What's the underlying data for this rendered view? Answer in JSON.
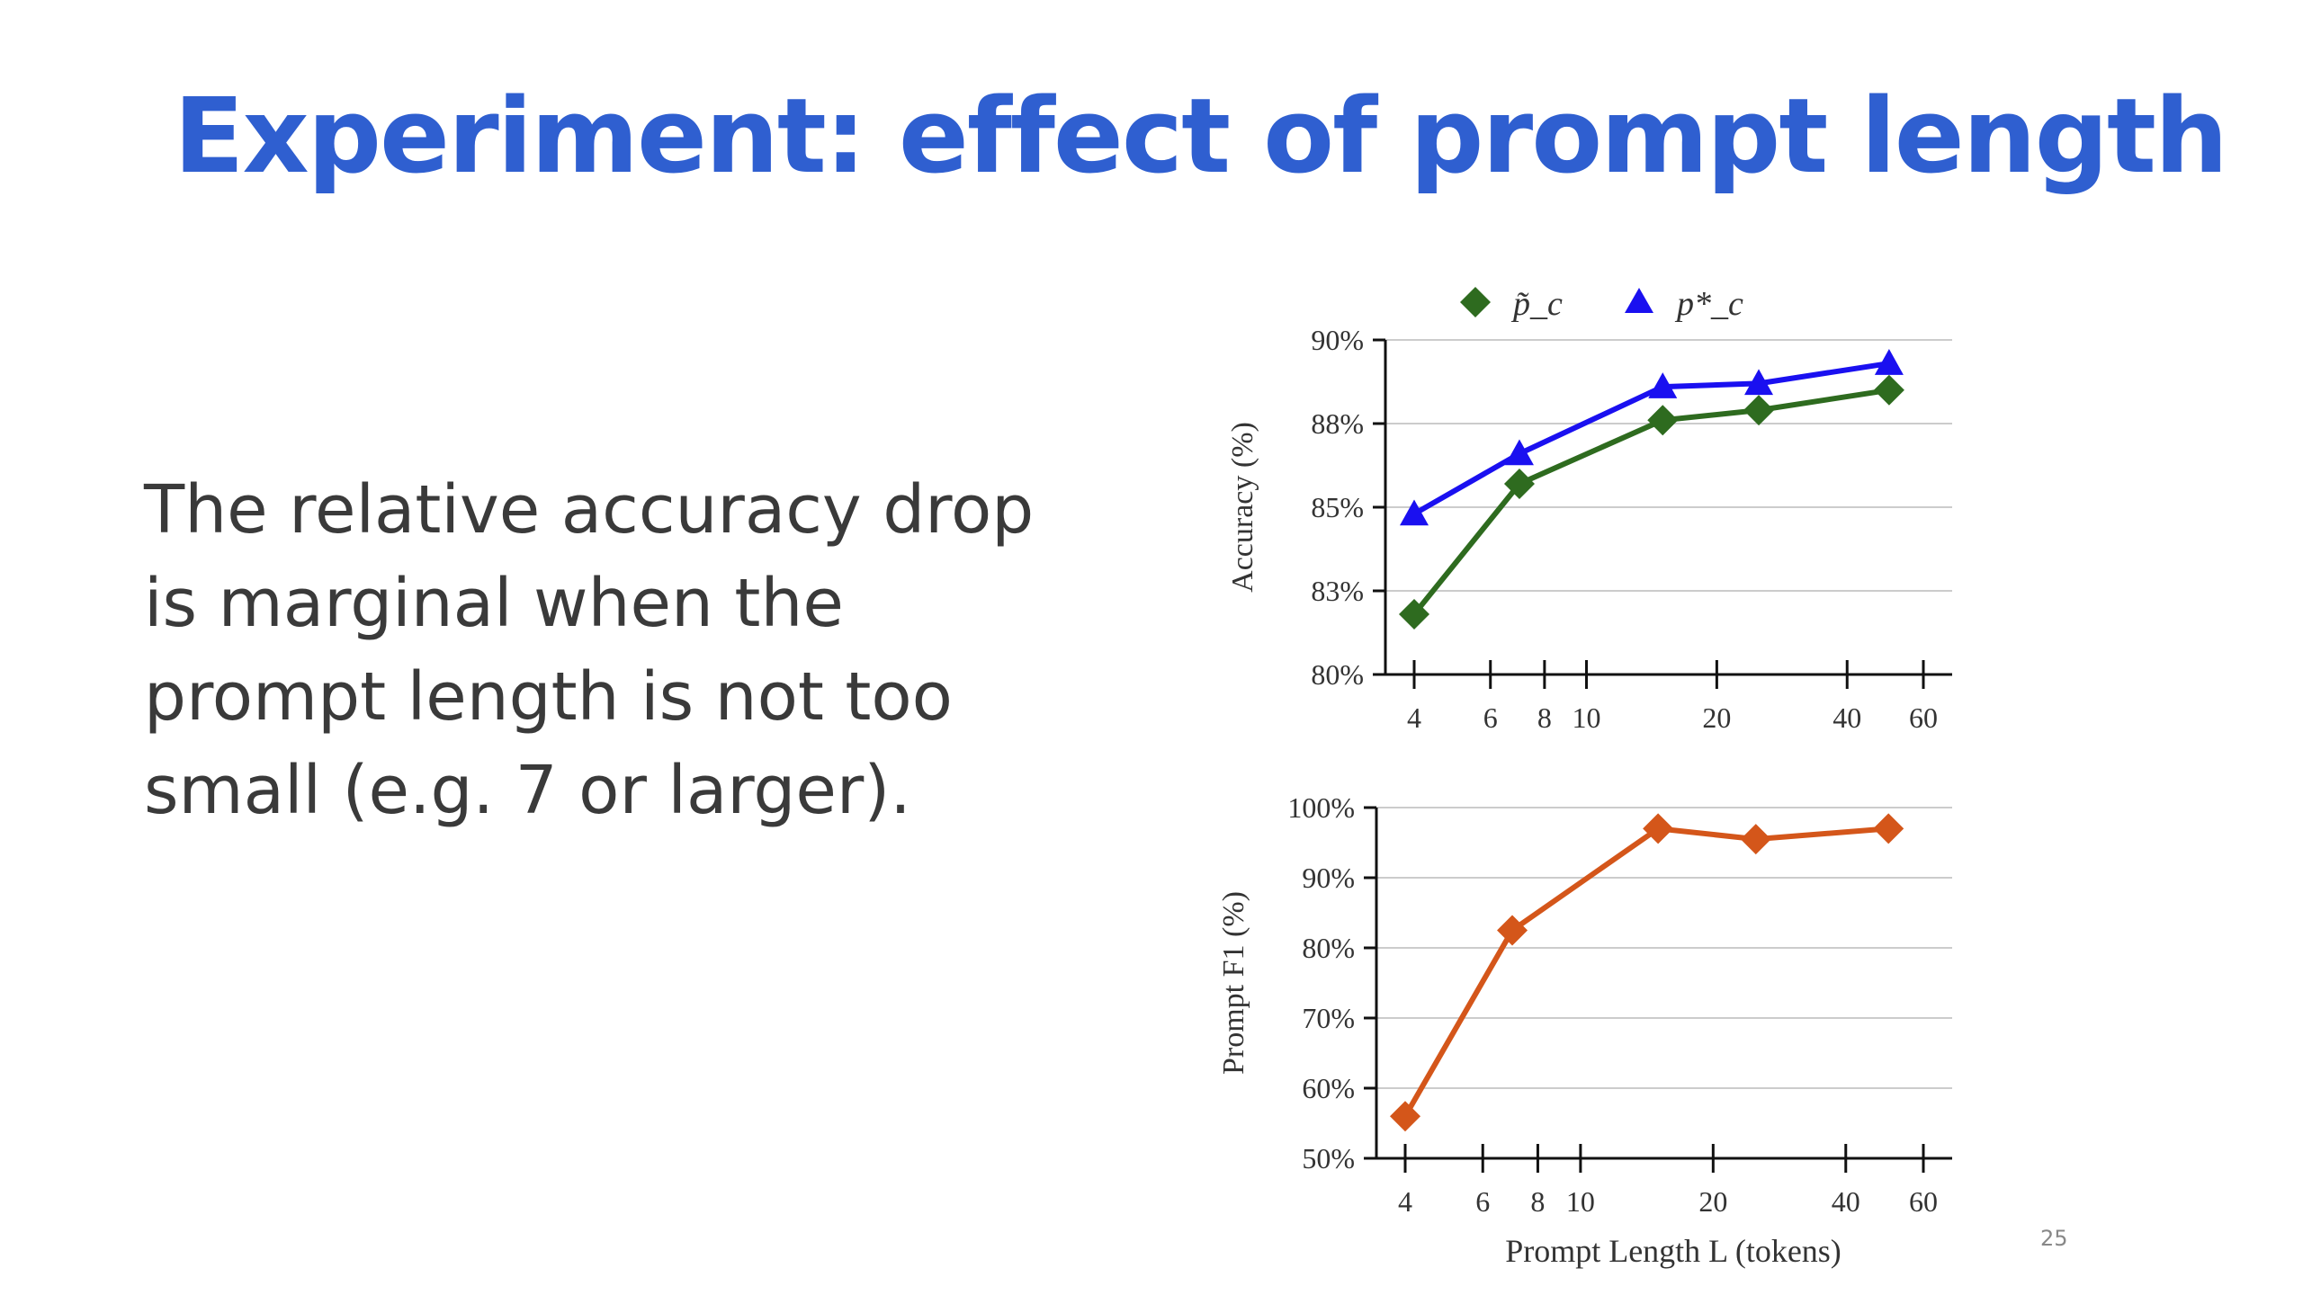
{
  "slide": {
    "title": "Experiment: effect of prompt length",
    "body": "The relative accuracy drop is marginal when the prompt length is not too small (e.g. 7 or larger).",
    "page_number": "25"
  },
  "colors": {
    "title": "#2f5fd0",
    "green_series": "#2e6b1f",
    "blue_series": "#1a10f0",
    "orange_series": "#d4561a",
    "grid": "#cccccc"
  },
  "chart_data": [
    {
      "type": "line",
      "x_scale": "log",
      "x": [
        4,
        7,
        15,
        25,
        50
      ],
      "x_ticks": [
        4,
        6,
        8,
        10,
        20,
        40,
        60
      ],
      "x_tick_labels": [
        "4",
        "6",
        "8",
        "10",
        "20",
        "40",
        "60"
      ],
      "y_ticks": [
        80,
        82.5,
        85,
        87.5,
        90
      ],
      "y_tick_labels": [
        "80%",
        "83%",
        "85%",
        "88%",
        "90%"
      ],
      "ylabel": "Accuracy (%)",
      "xlabel": "",
      "ylim": [
        80,
        90
      ],
      "grid": true,
      "legend": "top",
      "series": [
        {
          "name": "p̃_c",
          "marker": "diamond",
          "values": [
            81.8,
            85.7,
            87.6,
            87.9,
            88.5
          ]
        },
        {
          "name": "p*_c",
          "marker": "triangle",
          "values": [
            84.8,
            86.6,
            88.6,
            88.7,
            89.3
          ]
        }
      ]
    },
    {
      "type": "line",
      "x_scale": "log",
      "x": [
        4,
        7,
        15,
        25,
        50
      ],
      "x_ticks": [
        4,
        6,
        8,
        10,
        20,
        40,
        60
      ],
      "x_tick_labels": [
        "4",
        "6",
        "8",
        "10",
        "20",
        "40",
        "60"
      ],
      "y_ticks": [
        50,
        60,
        70,
        80,
        90,
        100
      ],
      "y_tick_labels": [
        "50%",
        "60%",
        "70%",
        "80%",
        "90%",
        "100%"
      ],
      "ylabel": "Prompt F1 (%)",
      "xlabel": "Prompt Length L (tokens)",
      "ylim": [
        50,
        100
      ],
      "grid": true,
      "series": [
        {
          "name": "",
          "marker": "diamond",
          "values": [
            56,
            82.5,
            97,
            95.5,
            97
          ]
        }
      ]
    }
  ]
}
